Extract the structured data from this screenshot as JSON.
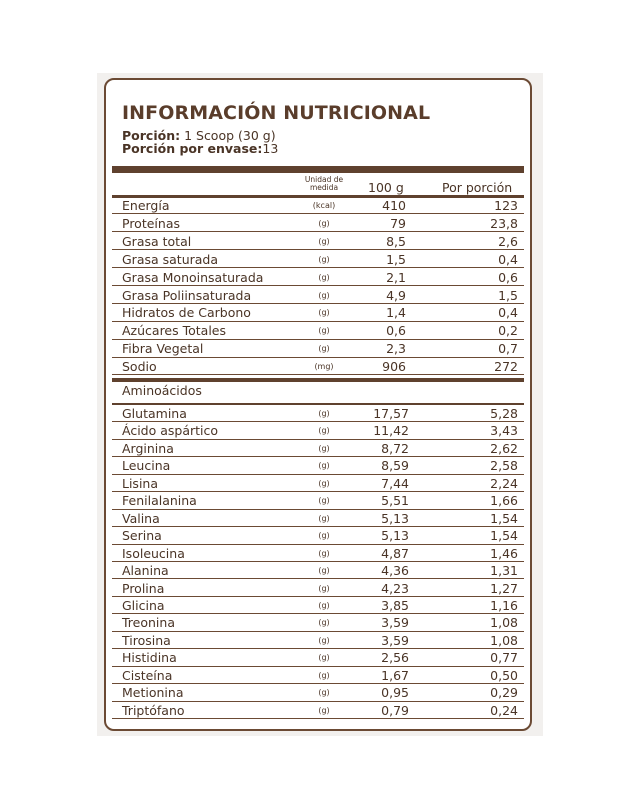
{
  "title": "INFORMACIÓN NUTRICIONAL",
  "portion": {
    "serving_label": "Porción:",
    "serving_value": "1 Scoop (30 g)",
    "per_container_label": "Porción por envase:",
    "per_container_value": "13"
  },
  "columns": {
    "unit": "Unidad de medida",
    "per_100g": "100 g",
    "per_serving": "Por porción"
  },
  "nutrients": [
    {
      "name": "Energía",
      "unit": "(kcal)",
      "per_100g": "410",
      "per_serving": "123"
    },
    {
      "name": "Proteínas",
      "unit": "(g)",
      "per_100g": "79",
      "per_serving": "23,8"
    },
    {
      "name": "Grasa total",
      "unit": "(g)",
      "per_100g": "8,5",
      "per_serving": "2,6"
    },
    {
      "name": "Grasa saturada",
      "unit": "(g)",
      "per_100g": "1,5",
      "per_serving": "0,4"
    },
    {
      "name": "Grasa Monoinsaturada",
      "unit": "(g)",
      "per_100g": "2,1",
      "per_serving": "0,6"
    },
    {
      "name": "Grasa Poliinsaturada",
      "unit": "(g)",
      "per_100g": "4,9",
      "per_serving": "1,5"
    },
    {
      "name": "Hidratos de Carbono",
      "unit": "(g)",
      "per_100g": "1,4",
      "per_serving": "0,4"
    },
    {
      "name": "Azúcares Totales",
      "unit": "(g)",
      "per_100g": "0,6",
      "per_serving": "0,2"
    },
    {
      "name": "Fibra Vegetal",
      "unit": "(g)",
      "per_100g": "2,3",
      "per_serving": "0,7"
    },
    {
      "name": "Sodio",
      "unit": "(mg)",
      "per_100g": "906",
      "per_serving": "272"
    }
  ],
  "amino_section_label": "Aminoácidos",
  "amino_acids": [
    {
      "name": "Glutamina",
      "unit": "(g)",
      "per_100g": "17,57",
      "per_serving": "5,28"
    },
    {
      "name": "Ácido aspártico",
      "unit": "(g)",
      "per_100g": "11,42",
      "per_serving": "3,43"
    },
    {
      "name": "Arginina",
      "unit": "(g)",
      "per_100g": "8,72",
      "per_serving": "2,62"
    },
    {
      "name": "Leucina",
      "unit": "(g)",
      "per_100g": "8,59",
      "per_serving": "2,58"
    },
    {
      "name": "Lisina",
      "unit": "(g)",
      "per_100g": "7,44",
      "per_serving": "2,24"
    },
    {
      "name": "Fenilalanina",
      "unit": "(g)",
      "per_100g": "5,51",
      "per_serving": "1,66"
    },
    {
      "name": "Valina",
      "unit": "(g)",
      "per_100g": "5,13",
      "per_serving": "1,54"
    },
    {
      "name": "Serina",
      "unit": "(g)",
      "per_100g": "5,13",
      "per_serving": "1,54"
    },
    {
      "name": "Isoleucina",
      "unit": "(g)",
      "per_100g": "4,87",
      "per_serving": "1,46"
    },
    {
      "name": "Alanina",
      "unit": "(g)",
      "per_100g": "4,36",
      "per_serving": "1,31"
    },
    {
      "name": "Prolina",
      "unit": "(g)",
      "per_100g": "4,23",
      "per_serving": "1,27"
    },
    {
      "name": "Glicina",
      "unit": "(g)",
      "per_100g": "3,85",
      "per_serving": "1,16"
    },
    {
      "name": "Treonina",
      "unit": "(g)",
      "per_100g": "3,59",
      "per_serving": "1,08"
    },
    {
      "name": "Tirosina",
      "unit": "(g)",
      "per_100g": "3,59",
      "per_serving": "1,08"
    },
    {
      "name": "Histidina",
      "unit": "(g)",
      "per_100g": "2,56",
      "per_serving": "0,77"
    },
    {
      "name": "Cisteína",
      "unit": "(g)",
      "per_100g": "1,67",
      "per_serving": "0,50"
    },
    {
      "name": "Metionina",
      "unit": "(g)",
      "per_100g": "0,95",
      "per_serving": "0,29"
    },
    {
      "name": "Triptófano",
      "unit": "(g)",
      "per_100g": "0,79",
      "per_serving": "0,24"
    }
  ],
  "colors": {
    "border": "#6b4a34",
    "text": "#4a3426",
    "bar": "#5f412e"
  }
}
